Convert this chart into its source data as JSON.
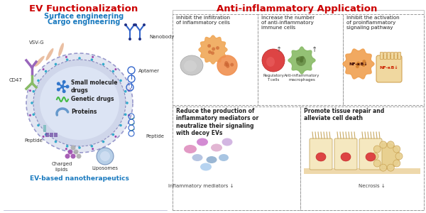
{
  "title_left": "EV Functionalization",
  "title_right": "Anti-inflammatory Application",
  "subtitle1": "Surface engineering",
  "subtitle2": "Cargo engineering",
  "left_labels": [
    "VSV-G",
    "CD47",
    "Peptide",
    "Charged\nlipids",
    "Liposomes",
    "Peptide",
    "Aptamer",
    "Nanobody"
  ],
  "inner_labels": [
    "Small molecule\ndrugs",
    "Genetic drugs",
    "Proteins"
  ],
  "bottom_label": "EV-based nanotherapeutics",
  "box_texts": [
    "Inhibit the infiltration\nof inflammatory cells",
    "Increase the number\nof anti-inflammatory\nimmune cells",
    "Inhibit the activation\nof proinflammatory\nsignaling pathway",
    "Reduce the production of\ninflammatory mediators or\nneutralize their signaling\nwith decoy EVs",
    "Promote tissue repair and\nalleviate cell death"
  ],
  "cell_labels": [
    "Regulatory\nT cells",
    "Anti-inflammatory\nmacrophages"
  ],
  "bottom_labels": [
    "Inflammatory mediators ↓",
    "Necrosis ↓"
  ],
  "title_left_color": "#cc0000",
  "title_right_color": "#cc0000",
  "subtitle_color": "#1a7abf",
  "bottom_text_color": "#1a7abf",
  "bg_color": "#ffffff"
}
